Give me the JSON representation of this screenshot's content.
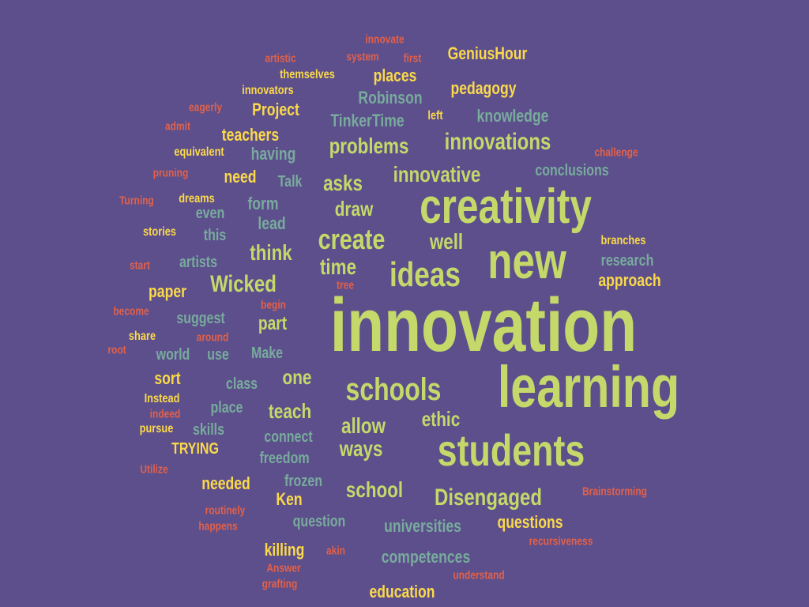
{
  "colors": {
    "background": "#5c4f8c",
    "lime": "#c5d96a",
    "yellow": "#fbd94a",
    "teal": "#78ab9c",
    "coral": "#e2614a"
  },
  "words": [
    {
      "text": "innovation",
      "color": "lime"
    },
    {
      "text": "learning",
      "color": "lime"
    },
    {
      "text": "creativity",
      "color": "lime"
    },
    {
      "text": "new",
      "color": "lime"
    },
    {
      "text": "students",
      "color": "lime"
    },
    {
      "text": "ideas",
      "color": "lime"
    },
    {
      "text": "schools",
      "color": "lime"
    },
    {
      "text": "create",
      "color": "lime"
    },
    {
      "text": "innovations",
      "color": "lime"
    },
    {
      "text": "problems",
      "color": "lime"
    },
    {
      "text": "innovative",
      "color": "lime"
    },
    {
      "text": "Disengaged",
      "color": "lime"
    },
    {
      "text": "Wicked",
      "color": "lime"
    },
    {
      "text": "think",
      "color": "lime"
    },
    {
      "text": "time",
      "color": "lime"
    },
    {
      "text": "well",
      "color": "lime"
    },
    {
      "text": "school",
      "color": "lime"
    },
    {
      "text": "asks",
      "color": "lime"
    },
    {
      "text": "draw",
      "color": "lime"
    },
    {
      "text": "allow",
      "color": "lime"
    },
    {
      "text": "ways",
      "color": "lime"
    },
    {
      "text": "teach",
      "color": "lime"
    },
    {
      "text": "part",
      "color": "lime"
    },
    {
      "text": "one",
      "color": "lime"
    },
    {
      "text": "ethic",
      "color": "lime"
    },
    {
      "text": "need",
      "color": "yellow"
    },
    {
      "text": "teachers",
      "color": "yellow"
    },
    {
      "text": "Project",
      "color": "yellow"
    },
    {
      "text": "places",
      "color": "yellow"
    },
    {
      "text": "pedagogy",
      "color": "yellow"
    },
    {
      "text": "GeniusHour",
      "color": "yellow"
    },
    {
      "text": "approach",
      "color": "yellow"
    },
    {
      "text": "questions",
      "color": "yellow"
    },
    {
      "text": "education",
      "color": "yellow"
    },
    {
      "text": "killing",
      "color": "yellow"
    },
    {
      "text": "Ken",
      "color": "yellow"
    },
    {
      "text": "needed",
      "color": "yellow"
    },
    {
      "text": "TRYING",
      "color": "yellow"
    },
    {
      "text": "sort",
      "color": "yellow"
    },
    {
      "text": "paper",
      "color": "yellow"
    },
    {
      "text": "themselves",
      "color": "yellow"
    },
    {
      "text": "innovators",
      "color": "yellow"
    },
    {
      "text": "equivalent",
      "color": "yellow"
    },
    {
      "text": "dreams",
      "color": "yellow"
    },
    {
      "text": "stories",
      "color": "yellow"
    },
    {
      "text": "left",
      "color": "yellow"
    },
    {
      "text": "branches",
      "color": "yellow"
    },
    {
      "text": "share",
      "color": "yellow"
    },
    {
      "text": "Instead",
      "color": "yellow"
    },
    {
      "text": "pursue",
      "color": "yellow"
    },
    {
      "text": "Robinson",
      "color": "teal"
    },
    {
      "text": "TinkerTime",
      "color": "teal"
    },
    {
      "text": "knowledge",
      "color": "teal"
    },
    {
      "text": "having",
      "color": "teal"
    },
    {
      "text": "conclusions",
      "color": "teal"
    },
    {
      "text": "Talk",
      "color": "teal"
    },
    {
      "text": "form",
      "color": "teal"
    },
    {
      "text": "even",
      "color": "teal"
    },
    {
      "text": "lead",
      "color": "teal"
    },
    {
      "text": "this",
      "color": "teal"
    },
    {
      "text": "artists",
      "color": "teal"
    },
    {
      "text": "research",
      "color": "teal"
    },
    {
      "text": "suggest",
      "color": "teal"
    },
    {
      "text": "world",
      "color": "teal"
    },
    {
      "text": "use",
      "color": "teal"
    },
    {
      "text": "Make",
      "color": "teal"
    },
    {
      "text": "class",
      "color": "teal"
    },
    {
      "text": "place",
      "color": "teal"
    },
    {
      "text": "skills",
      "color": "teal"
    },
    {
      "text": "connect",
      "color": "teal"
    },
    {
      "text": "freedom",
      "color": "teal"
    },
    {
      "text": "frozen",
      "color": "teal"
    },
    {
      "text": "question",
      "color": "teal"
    },
    {
      "text": "universities",
      "color": "teal"
    },
    {
      "text": "competences",
      "color": "teal"
    },
    {
      "text": "innovate",
      "color": "coral"
    },
    {
      "text": "artistic",
      "color": "coral"
    },
    {
      "text": "system",
      "color": "coral"
    },
    {
      "text": "first",
      "color": "coral"
    },
    {
      "text": "eagerly",
      "color": "coral"
    },
    {
      "text": "admit",
      "color": "coral"
    },
    {
      "text": "pruning",
      "color": "coral"
    },
    {
      "text": "Turning",
      "color": "coral"
    },
    {
      "text": "challenge",
      "color": "coral"
    },
    {
      "text": "start",
      "color": "coral"
    },
    {
      "text": "tree",
      "color": "coral"
    },
    {
      "text": "become",
      "color": "coral"
    },
    {
      "text": "begin",
      "color": "coral"
    },
    {
      "text": "around",
      "color": "coral"
    },
    {
      "text": "root",
      "color": "coral"
    },
    {
      "text": "indeed",
      "color": "coral"
    },
    {
      "text": "Utilize",
      "color": "coral"
    },
    {
      "text": "Brainstorming",
      "color": "coral"
    },
    {
      "text": "routinely",
      "color": "coral"
    },
    {
      "text": "happens",
      "color": "coral"
    },
    {
      "text": "recursiveness",
      "color": "coral"
    },
    {
      "text": "akin",
      "color": "coral"
    },
    {
      "text": "Answer",
      "color": "coral"
    },
    {
      "text": "grafting",
      "color": "coral"
    },
    {
      "text": "understand",
      "color": "coral"
    }
  ]
}
